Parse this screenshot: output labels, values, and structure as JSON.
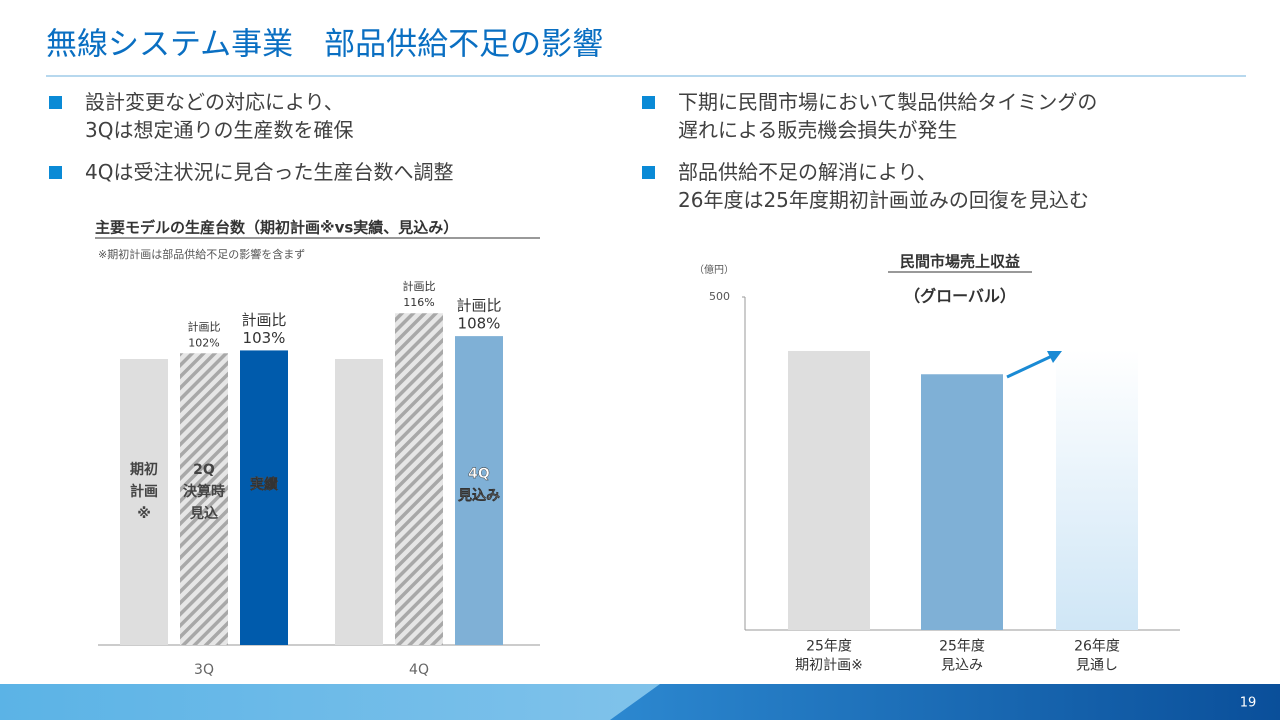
{
  "title": "無線システム事業　部品供給不足の影響",
  "bullets_left": [
    "設計変更などの対応により、\n3Qは想定通りの生産数を確保",
    "4Qは受注状況に見合った生産台数へ調整"
  ],
  "bullets_right": [
    "下期に民間市場において製品供給タイミングの\n遅れによる販売機会損失が発生",
    "部品供給不足の解消により、\n26年度は25年度期初計画並みの回復を見込む"
  ],
  "page_number": "19",
  "chart_data": [
    {
      "type": "grouped-bar",
      "title": "主要モデルの生産台数（期初計画※vs実績、見込み）",
      "note": "※期初計画は部品供給不足の影響を含まず",
      "ratio_prefix": "計画比",
      "categories": [
        "3Q",
        "4Q"
      ],
      "series": [
        {
          "labels": [
            "期初\n計画\n※",
            null
          ],
          "colors": [
            "#dedede",
            "#dedede"
          ],
          "values": [
            100,
            100
          ],
          "value_labels": [
            null,
            null
          ]
        },
        {
          "labels": [
            "2Q\n決算時\n見込",
            null
          ],
          "colors": [
            "hatch",
            "hatch"
          ],
          "values": [
            102,
            116
          ],
          "value_labels": [
            "102%",
            "116%"
          ]
        },
        {
          "labels": [
            "実績",
            "4Q\n見込み"
          ],
          "colors": [
            "#005bac",
            "#7fb0d6"
          ],
          "values": [
            103,
            108
          ],
          "value_labels": [
            "103%",
            "108%"
          ]
        }
      ]
    },
    {
      "type": "bar",
      "title": "民間市場売上収益",
      "subtitle": "（グローバル）",
      "unit": "（億円）",
      "categories": [
        "25年度\n期初計画※",
        "25年度\n見込み",
        "26年度\n見通し"
      ],
      "colors": [
        "#dedede",
        "#7fb0d6",
        "gradient"
      ],
      "values": [
        419,
        384,
        421
      ],
      "ylim": [
        0,
        500
      ],
      "yticks": [
        500
      ]
    }
  ]
}
